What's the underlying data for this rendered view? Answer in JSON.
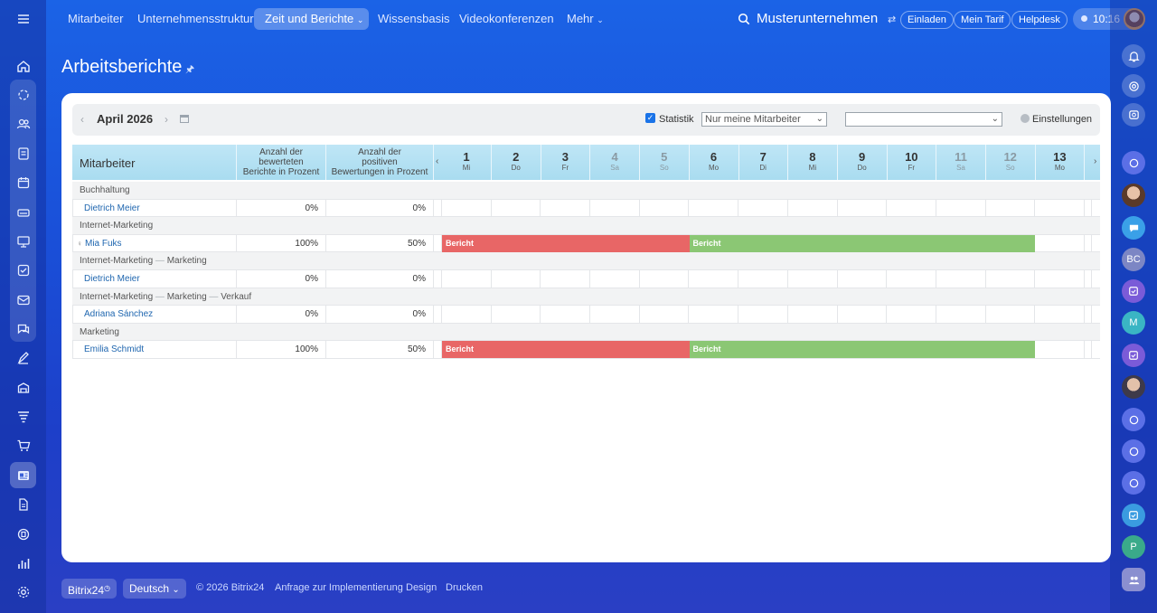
{
  "topnav": {
    "items": [
      {
        "label": "Mitarbeiter"
      },
      {
        "label": "Unternehmensstruktur"
      },
      {
        "label": "Zeit und Berichte"
      },
      {
        "label": "Wissensbasis"
      },
      {
        "label": "Videokonferenzen"
      },
      {
        "label": "Mehr"
      }
    ],
    "active_index": 2,
    "company": "Musterunternehmen",
    "invite": "Einladen",
    "tariff": "Mein Tarif",
    "helpdesk": "Helpdesk",
    "time": "10:16"
  },
  "page": {
    "title": "Arbeitsberichte"
  },
  "filter": {
    "period": "April 2026",
    "statistic_label": "Statistik",
    "statistic_checked": true,
    "employee_select": "Nur meine Mitarbeiter",
    "second_select": "",
    "settings_label": "Einstellungen"
  },
  "table": {
    "headers": {
      "employee": "Mitarbeiter",
      "col_rated": "Anzahl der bewerteten Berichte in Prozent",
      "col_rated_lines": [
        "Anzahl der",
        "bewerteten",
        "Berichte in Prozent"
      ],
      "col_positive_lines": [
        "Anzahl der",
        "positiven",
        "Bewertungen in Prozent"
      ]
    },
    "days": [
      {
        "num": "1",
        "wd": "Mi",
        "weekend": false
      },
      {
        "num": "2",
        "wd": "Do",
        "weekend": false
      },
      {
        "num": "3",
        "wd": "Fr",
        "weekend": false
      },
      {
        "num": "4",
        "wd": "Sa",
        "weekend": true
      },
      {
        "num": "5",
        "wd": "So",
        "weekend": true
      },
      {
        "num": "6",
        "wd": "Mo",
        "weekend": false
      },
      {
        "num": "7",
        "wd": "Di",
        "weekend": false
      },
      {
        "num": "8",
        "wd": "Mi",
        "weekend": false
      },
      {
        "num": "9",
        "wd": "Do",
        "weekend": false
      },
      {
        "num": "10",
        "wd": "Fr",
        "weekend": false
      },
      {
        "num": "11",
        "wd": "Sa",
        "weekend": true
      },
      {
        "num": "12",
        "wd": "So",
        "weekend": true
      },
      {
        "num": "13",
        "wd": "Mo",
        "weekend": false
      }
    ],
    "rows": [
      {
        "type": "group",
        "path": [
          "Buchhaltung"
        ]
      },
      {
        "type": "employee",
        "name": "Dietrich Meier",
        "rated": "0%",
        "positive": "0%",
        "bars": []
      },
      {
        "type": "group",
        "path": [
          "Internet-Marketing"
        ]
      },
      {
        "type": "employee",
        "name": "Mia Fuks",
        "rated": "100%",
        "positive": "50%",
        "head": true,
        "bars": [
          {
            "label": "Bericht",
            "color": "red",
            "from_day": 1,
            "to_day": 5
          },
          {
            "label": "Bericht",
            "color": "green",
            "from_day": 6,
            "to_day": 12
          }
        ]
      },
      {
        "type": "group",
        "path": [
          "Internet-Marketing",
          "Marketing"
        ]
      },
      {
        "type": "employee",
        "name": "Dietrich Meier",
        "rated": "0%",
        "positive": "0%",
        "bars": []
      },
      {
        "type": "group",
        "path": [
          "Internet-Marketing",
          "Marketing",
          "Verkauf"
        ]
      },
      {
        "type": "employee",
        "name": "Adriana Sánchez",
        "rated": "0%",
        "positive": "0%",
        "bars": []
      },
      {
        "type": "group",
        "path": [
          "Marketing"
        ]
      },
      {
        "type": "employee",
        "name": "Emilia Schmidt",
        "rated": "100%",
        "positive": "50%",
        "bars": [
          {
            "label": "Bericht",
            "color": "red",
            "from_day": 1,
            "to_day": 5
          },
          {
            "label": "Bericht",
            "color": "green",
            "from_day": 6,
            "to_day": 12
          }
        ]
      }
    ],
    "bar_colors": {
      "red": "#e86666",
      "green": "#8bc774"
    }
  },
  "footer": {
    "brand": "Bitrix24",
    "language": "Deutsch",
    "copyright": "© 2026 Bitrix24",
    "implementation": "Anfrage zur Implementierung",
    "design": "Design",
    "print": "Drucken"
  },
  "rightbar": {
    "badge_bc": "BC",
    "badge_m": "M",
    "badge_p": "P"
  }
}
